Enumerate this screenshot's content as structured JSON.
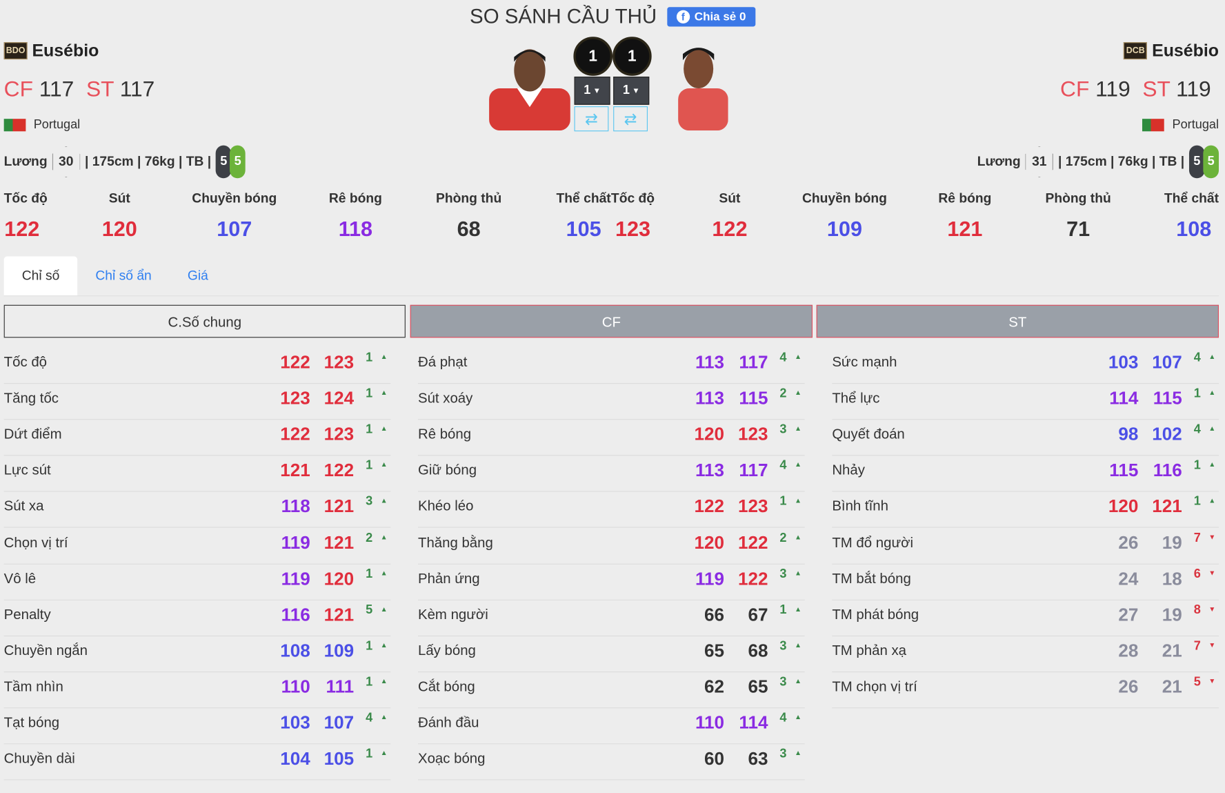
{
  "header": {
    "title": "SO SÁNH CẦU THỦ",
    "share_label": "Chia sẻ 0",
    "share_icon": "facebook-icon"
  },
  "players": [
    {
      "season": "BDO",
      "name": "Eusébio",
      "positions": [
        {
          "pos": "CF",
          "ovr": "117"
        },
        {
          "pos": "ST",
          "ovr": "117"
        }
      ],
      "nation": "Portugal",
      "salary_label": "Lương",
      "salary": "30",
      "info": "| 175cm | 76kg | TB |",
      "weak_foot": "5",
      "strong_foot": "5",
      "level": "1",
      "upgrade": "1",
      "stats": [
        {
          "label": "Tốc độ",
          "value": "122"
        },
        {
          "label": "Sút",
          "value": "120"
        },
        {
          "label": "Chuyền bóng",
          "value": "107"
        },
        {
          "label": "Rê bóng",
          "value": "118"
        },
        {
          "label": "Phòng thủ",
          "value": "68"
        },
        {
          "label": "Thể chất",
          "value": "105"
        }
      ]
    },
    {
      "season": "DCB",
      "name": "Eusébio",
      "positions": [
        {
          "pos": "CF",
          "ovr": "119"
        },
        {
          "pos": "ST",
          "ovr": "119"
        }
      ],
      "nation": "Portugal",
      "salary_label": "Lương",
      "salary": "31",
      "info": "| 175cm | 76kg | TB |",
      "weak_foot": "5",
      "strong_foot": "5",
      "level": "1",
      "upgrade": "1",
      "stats": [
        {
          "label": "Tốc độ",
          "value": "123"
        },
        {
          "label": "Sút",
          "value": "122"
        },
        {
          "label": "Chuyền bóng",
          "value": "109"
        },
        {
          "label": "Rê bóng",
          "value": "121"
        },
        {
          "label": "Phòng thủ",
          "value": "71"
        },
        {
          "label": "Thể chất",
          "value": "108"
        }
      ]
    }
  ],
  "tabs": [
    {
      "label": "Chỉ số",
      "active": true
    },
    {
      "label": "Chỉ số ẩn"
    },
    {
      "label": "Giá"
    }
  ],
  "columns": [
    {
      "title": "C.Số chung",
      "rows": [
        [
          "Tốc độ",
          "122",
          "123",
          "1",
          "up"
        ],
        [
          "Tăng tốc",
          "123",
          "124",
          "1",
          "up"
        ],
        [
          "Dứt điểm",
          "122",
          "123",
          "1",
          "up"
        ],
        [
          "Lực sút",
          "121",
          "122",
          "1",
          "up"
        ],
        [
          "Sút xa",
          "118",
          "121",
          "3",
          "up"
        ],
        [
          "Chọn vị trí",
          "119",
          "121",
          "2",
          "up"
        ],
        [
          "Vô lê",
          "119",
          "120",
          "1",
          "up"
        ],
        [
          "Penalty",
          "116",
          "121",
          "5",
          "up"
        ],
        [
          "Chuyền ngắn",
          "108",
          "109",
          "1",
          "up"
        ],
        [
          "Tầm nhìn",
          "110",
          "111",
          "1",
          "up"
        ],
        [
          "Tạt bóng",
          "103",
          "107",
          "4",
          "up"
        ],
        [
          "Chuyền dài",
          "104",
          "105",
          "1",
          "up"
        ]
      ]
    },
    {
      "title": "CF",
      "rows": [
        [
          "Đá phạt",
          "113",
          "117",
          "4",
          "up"
        ],
        [
          "Sút xoáy",
          "113",
          "115",
          "2",
          "up"
        ],
        [
          "Rê bóng",
          "120",
          "123",
          "3",
          "up"
        ],
        [
          "Giữ bóng",
          "113",
          "117",
          "4",
          "up"
        ],
        [
          "Khéo léo",
          "122",
          "123",
          "1",
          "up"
        ],
        [
          "Thăng bằng",
          "120",
          "122",
          "2",
          "up"
        ],
        [
          "Phản ứng",
          "119",
          "122",
          "3",
          "up"
        ],
        [
          "Kèm người",
          "66",
          "67",
          "1",
          "up"
        ],
        [
          "Lấy bóng",
          "65",
          "68",
          "3",
          "up"
        ],
        [
          "Cắt bóng",
          "62",
          "65",
          "3",
          "up"
        ],
        [
          "Đánh đầu",
          "110",
          "114",
          "4",
          "up"
        ],
        [
          "Xoạc bóng",
          "60",
          "63",
          "3",
          "up"
        ]
      ]
    },
    {
      "title": "ST",
      "rows": [
        [
          "Sức mạnh",
          "103",
          "107",
          "4",
          "up"
        ],
        [
          "Thể lực",
          "114",
          "115",
          "1",
          "up"
        ],
        [
          "Quyết đoán",
          "98",
          "102",
          "4",
          "up"
        ],
        [
          "Nhảy",
          "115",
          "116",
          "1",
          "up"
        ],
        [
          "Bình tĩnh",
          "120",
          "121",
          "1",
          "up"
        ],
        [
          "TM đổ người",
          "26",
          "19",
          "7",
          "down"
        ],
        [
          "TM bắt bóng",
          "24",
          "18",
          "6",
          "down"
        ],
        [
          "TM phát bóng",
          "27",
          "19",
          "8",
          "down"
        ],
        [
          "TM phản xạ",
          "28",
          "21",
          "7",
          "down"
        ],
        [
          "TM chọn vị trí",
          "26",
          "21",
          "5",
          "down"
        ]
      ]
    }
  ],
  "colors": {
    "red": "#e02d3c",
    "purple": "#8a2be2",
    "blue": "#4b4fe6",
    "dark": "#333333",
    "gray": "#8a8c9c",
    "up": "#3a8a4a",
    "down": "#d9343f",
    "accent": "#3b78e7"
  }
}
